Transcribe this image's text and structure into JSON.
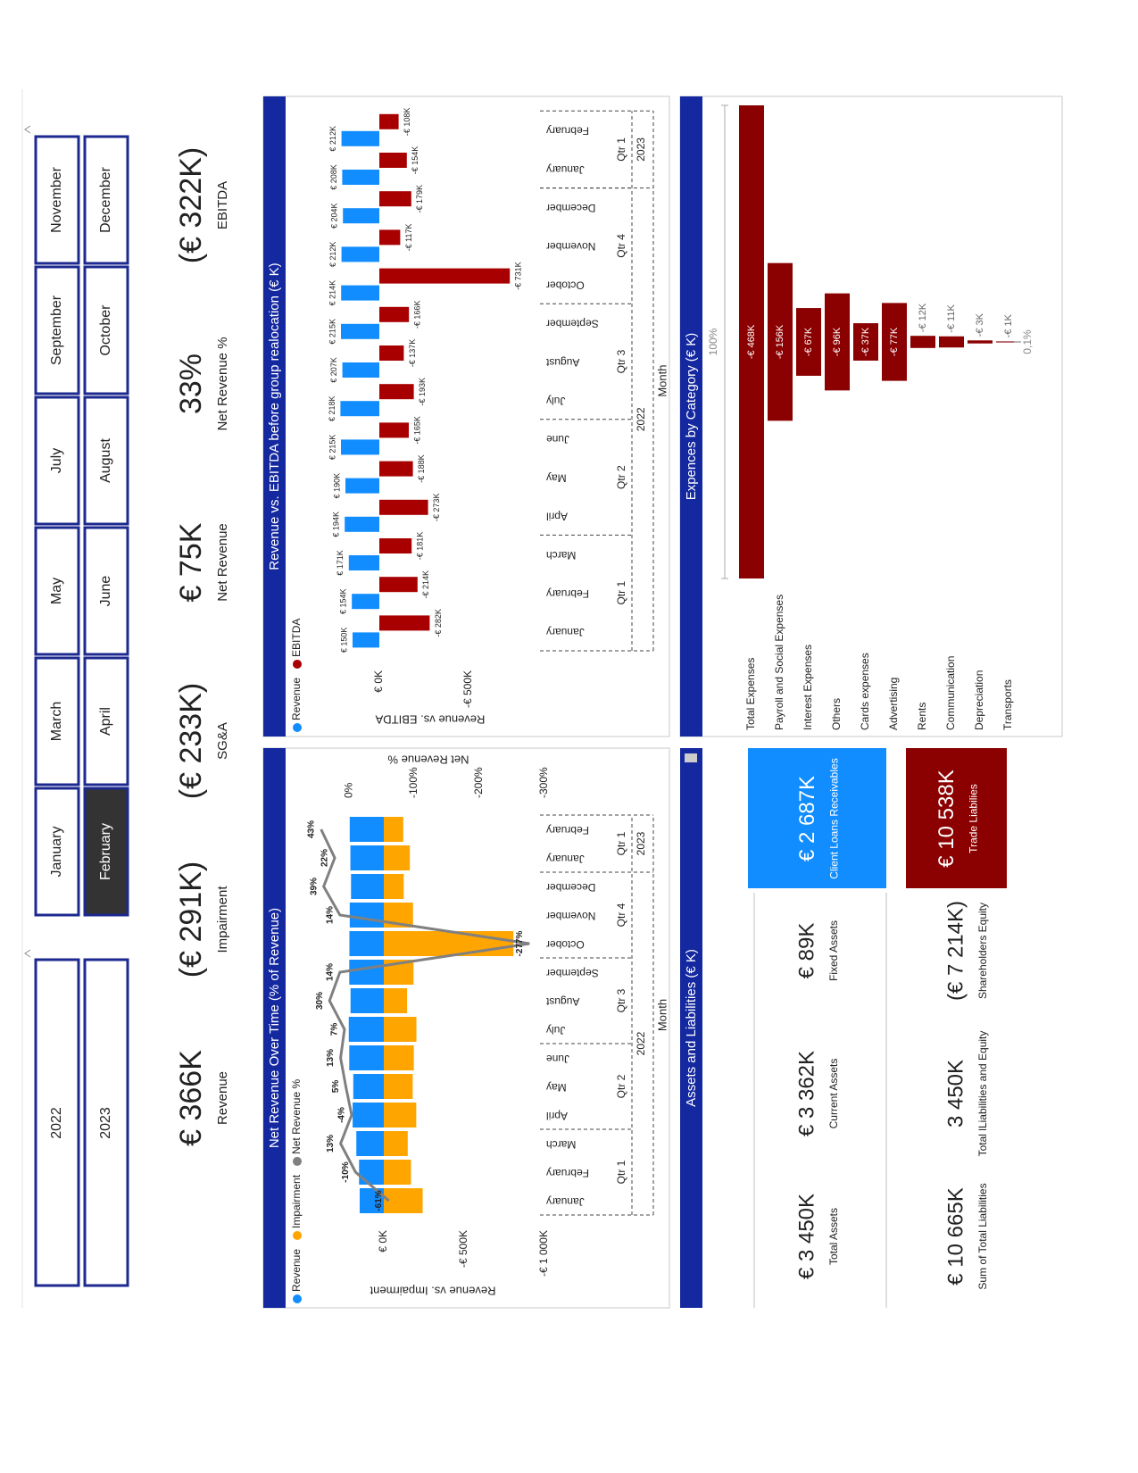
{
  "slicers": {
    "years": [
      "2022",
      "2023"
    ],
    "months": [
      "January",
      "February",
      "March",
      "April",
      "May",
      "June",
      "July",
      "August",
      "September",
      "October",
      "November",
      "December"
    ],
    "selected_month": "February"
  },
  "kpis": [
    {
      "value": "€ 366K",
      "label": "Revenue"
    },
    {
      "value": "(€ 291K)",
      "label": "Impairment"
    },
    {
      "value": "(€ 233K)",
      "label": "SG&A"
    },
    {
      "value": "€ 75K",
      "label": "Net Revenue"
    },
    {
      "value": "33%",
      "label": "Net Revenue %"
    },
    {
      "value": "(€ 322K)",
      "label": "EBITDA"
    }
  ],
  "chart_data": [
    {
      "type": "combo",
      "title": "Net Revenue Over Time (% of Revenue)",
      "x_label": "Month",
      "y_label": "Revenue vs. Impairment",
      "y2_label": "Net Revenue %",
      "categories": [
        "January",
        "February",
        "March",
        "April",
        "May",
        "June",
        "July",
        "August",
        "September",
        "October",
        "November",
        "December",
        "January",
        "February"
      ],
      "quarters": [
        "Qtr 1",
        "Qtr 2",
        "Qtr 3",
        "Qtr 4",
        "Qtr 1"
      ],
      "years": [
        "2022",
        "2023"
      ],
      "ylim": [
        -1000,
        500
      ],
      "yticks": [
        {
          "value": 0,
          "label": "€ 0K"
        },
        {
          "value": -500,
          "label": "-€ 500K"
        },
        {
          "value": -1000,
          "label": "-€ 1 000K"
        }
      ],
      "y2lim": [
        -300,
        70
      ],
      "y2ticks": [
        {
          "value": 0,
          "label": "0%"
        },
        {
          "value": -100,
          "label": "-100%"
        },
        {
          "value": -200,
          "label": "-200%"
        },
        {
          "value": -300,
          "label": "-300%"
        }
      ],
      "series": [
        {
          "name": "Revenue",
          "type": "bar",
          "color": "#118dff",
          "values": [
            150,
            154,
            171,
            194,
            190,
            215,
            218,
            207,
            215,
            214,
            212,
            204,
            208,
            212
          ]
        },
        {
          "name": "Impairment",
          "type": "bar",
          "color": "#ffa500",
          "values": [
            -242,
            -169,
            -149,
            -202,
            -180,
            -187,
            -203,
            -145,
            -185,
            -807,
            -182,
            -124,
            -162,
            -121
          ]
        },
        {
          "name": "Net Revenue %",
          "type": "line",
          "axis": "y2",
          "color": "#808080",
          "values": [
            -61,
            -10,
            13,
            -4,
            5,
            13,
            7,
            30,
            14,
            -277,
            14,
            39,
            22,
            43
          ],
          "value_labels": [
            "-61%",
            "-10%",
            "13%",
            "-4%",
            "5%",
            "13%",
            "7%",
            "30%",
            "14%",
            "-277%",
            "14%",
            "39%",
            "22%",
            "43%"
          ]
        }
      ]
    },
    {
      "type": "bar",
      "title": "Revenue vs. EBITDA before group realocation (€ K)",
      "x_label": "Month",
      "y_label": "Revenue vs. EBITDA",
      "categories": [
        "January",
        "February",
        "March",
        "April",
        "May",
        "June",
        "July",
        "August",
        "September",
        "October",
        "November",
        "December",
        "January",
        "February"
      ],
      "quarters": [
        "Qtr 1",
        "Qtr 2",
        "Qtr 3",
        "Qtr 4",
        "Qtr 1"
      ],
      "years": [
        "2022",
        "2023"
      ],
      "ylim": [
        -900,
        400
      ],
      "yticks": [
        {
          "value": 0,
          "label": "€ 0K"
        },
        {
          "value": -500,
          "label": "-€ 500K"
        }
      ],
      "series": [
        {
          "name": "Revenue",
          "color": "#118dff",
          "values": [
            150,
            154,
            171,
            194,
            190,
            215,
            218,
            207,
            215,
            214,
            212,
            204,
            208,
            212
          ],
          "value_labels": [
            "€ 150K",
            "€ 154K",
            "€ 171K",
            "€ 194K",
            "€ 190K",
            "€ 215K",
            "€ 218K",
            "€ 207K",
            "€ 215K",
            "€ 214K",
            "€ 212K",
            "€ 204K",
            "€ 208K",
            "€ 212K"
          ]
        },
        {
          "name": "EBITDA",
          "color": "#a80000",
          "values": [
            -282,
            -214,
            -181,
            -273,
            -188,
            -165,
            -193,
            -137,
            -166,
            -731,
            -117,
            -179,
            -154,
            -108
          ],
          "value_labels": [
            "-€ 282K",
            "-€ 214K",
            "-€ 181K",
            "-€ 273K",
            "-€ 188K",
            "-€ 165K",
            "-€ 193K",
            "-€ 137K",
            "-€ 166K",
            "-€ 731K",
            "-€ 117K",
            "-€ 179K",
            "-€ 154K",
            "-€ 108K"
          ]
        }
      ]
    },
    {
      "type": "funnel",
      "title": "Expences by Category (€ K)",
      "color": "#8b0000",
      "categories": [
        "Total Expenses",
        "Payroll and Social Expenses",
        "Interest Expenses",
        "Others",
        "Cards expenses",
        "Advertising",
        "Rents",
        "Communication",
        "Depreciation",
        "Transports"
      ],
      "values": [
        -468,
        -156,
        -67,
        -96,
        -37,
        -77,
        -12,
        -11,
        -3,
        -1
      ],
      "value_labels": [
        "-€ 468K",
        "-€ 156K",
        "-€ 67K",
        "-€ 96K",
        "-€ 37K",
        "-€ 77K",
        "-€ 12K",
        "-€ 11K",
        "-€ 3K",
        "-€ 1K"
      ],
      "rates": [
        {
          "value": 100,
          "label": "100%"
        },
        {
          "value": 0.1,
          "label": "0,1%"
        }
      ]
    }
  ],
  "assets": {
    "title": "Assets and Liabilities (€ K)",
    "cards": [
      {
        "value": "€ 3 450K",
        "label": "Total Assets"
      },
      {
        "value": "€ 3 362K",
        "label": "Current Assets"
      },
      {
        "value": "€ 89K",
        "label": "Fixed Assets"
      },
      {
        "value": "€ 2 687K",
        "label": "Client Loans Receivables",
        "color": "#118dff"
      },
      {
        "value": "€ 10 665K",
        "label": "Sum of Total Liabilities"
      },
      {
        "value": "3 450K",
        "label": "Total lLiabilities and Equity"
      },
      {
        "value": "(€ 7 214K)",
        "label": "Shareholders Equity"
      },
      {
        "value": "€ 10 538K",
        "label": "Trade Liabilies",
        "color": "#8b0000"
      }
    ]
  }
}
